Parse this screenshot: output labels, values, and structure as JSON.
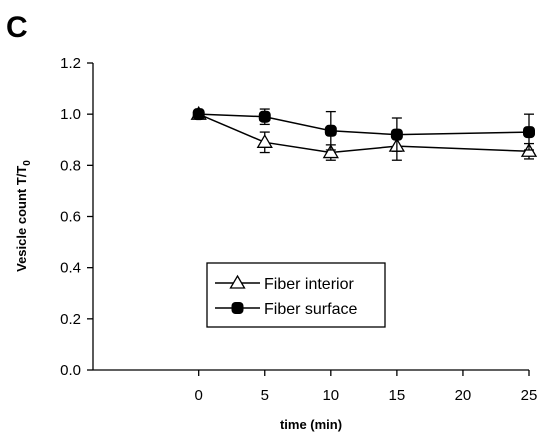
{
  "panel_label": "C",
  "chart_data": {
    "type": "line",
    "xlabel": "time (min)",
    "ylabel_main": "Vesicle count T/T",
    "ylabel_sub": "0",
    "x_ticks": [
      0,
      5,
      10,
      15,
      20,
      25
    ],
    "x_tick_labels": [
      "0",
      "5",
      "10",
      "15",
      "20",
      "25"
    ],
    "y_ticks": [
      0.0,
      0.2,
      0.4,
      0.6,
      0.8,
      1.0,
      1.2
    ],
    "y_tick_labels": [
      "0.0",
      "0.2",
      "0.4",
      "0.6",
      "0.8",
      "1.0",
      "1.2"
    ],
    "xlim": [
      -8,
      25
    ],
    "ylim": [
      0,
      1.2
    ],
    "grid": false,
    "legend_position": "lower-center",
    "series": [
      {
        "name": "Fiber interior",
        "marker": "open-triangle",
        "x": [
          0,
          5,
          10,
          15,
          25
        ],
        "y": [
          1.0,
          0.89,
          0.85,
          0.875,
          0.855
        ],
        "err": [
          0.0,
          0.04,
          0.03,
          0.055,
          0.03
        ]
      },
      {
        "name": "Fiber surface",
        "marker": "filled-circle",
        "x": [
          0,
          5,
          10,
          15,
          25
        ],
        "y": [
          1.0,
          0.99,
          0.935,
          0.92,
          0.93
        ],
        "err": [
          0.0,
          0.03,
          0.075,
          0.065,
          0.07
        ]
      }
    ]
  }
}
